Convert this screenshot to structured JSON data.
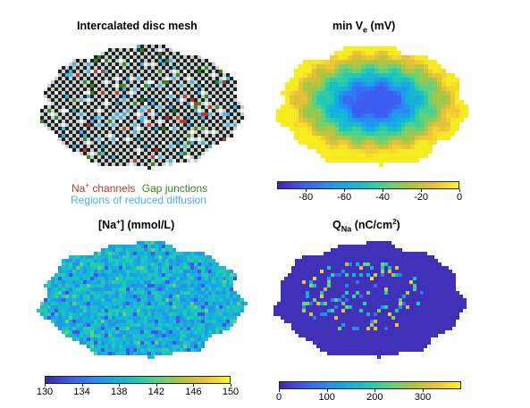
{
  "colors": {
    "na_channels": "#c0392b",
    "gap_junctions": "#3a8a1a",
    "reduced_diffusion": "#4ab3e6",
    "colormap": [
      "#3e26a8",
      "#4156f0",
      "#2d84f7",
      "#13aee0",
      "#1ecab5",
      "#62d27b",
      "#b6c43a",
      "#f0c23a",
      "#f9fb15"
    ]
  },
  "panels": {
    "mesh": {
      "title": "Intercalated disc mesh",
      "legend": {
        "na_prefix": "Na",
        "na_sup": "+",
        "na_suffix": " channels",
        "gap": "Gap junctions",
        "diffusion": "Regions of reduced diffusion"
      }
    },
    "ve": {
      "title_prefix": "min V",
      "title_sub": "e",
      "title_suffix": " (mV)",
      "colorbar": {
        "ticks": [
          "-80",
          "-60",
          "-40",
          "-20",
          "0"
        ],
        "min": -95,
        "max": 0,
        "values": [
          -80,
          -60,
          -40,
          -20,
          0
        ]
      }
    },
    "na": {
      "title_prefix": "[Na",
      "title_sup": "+",
      "title_suffix": "] (mmol/L)",
      "colorbar": {
        "ticks": [
          "130",
          "134",
          "138",
          "142",
          "146",
          "150"
        ],
        "min": 130,
        "max": 150,
        "values": [
          130,
          134,
          138,
          142,
          146,
          150
        ]
      }
    },
    "qna": {
      "title_prefix": "Q",
      "title_sub": "Na",
      "title_mid": " (nC/cm",
      "title_sup": "2",
      "title_suffix": ")",
      "colorbar": {
        "ticks": [
          "0",
          "100",
          "200",
          "300"
        ],
        "min": 0,
        "max": 380,
        "values": [
          0,
          100,
          200,
          300
        ]
      }
    }
  }
}
